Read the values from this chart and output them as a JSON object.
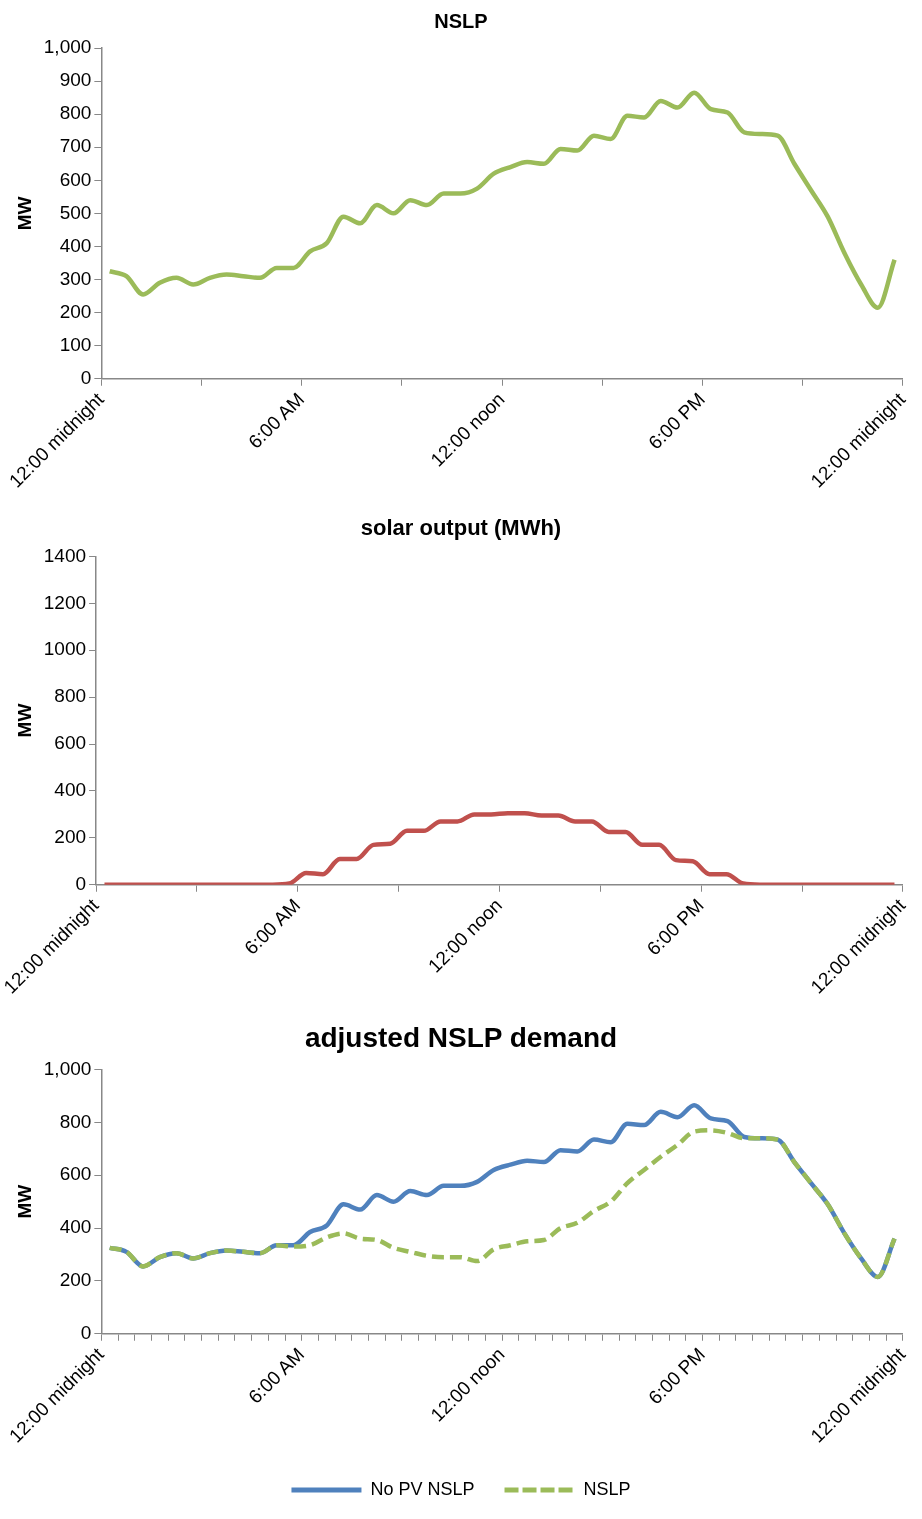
{
  "chart_data": [
    {
      "type": "line",
      "title": "NSLP",
      "ylabel": "MW",
      "x": [
        0.25,
        0.75,
        1.25,
        1.75,
        2.25,
        2.75,
        3.25,
        3.75,
        4.25,
        4.75,
        5.25,
        5.75,
        6.25,
        6.75,
        7.25,
        7.75,
        8.25,
        8.75,
        9.25,
        9.75,
        10.25,
        10.75,
        11.25,
        11.75,
        12.25,
        12.75,
        13.25,
        13.75,
        14.25,
        14.75,
        15.25,
        15.75,
        16.25,
        16.75,
        17.25,
        17.75,
        18.25,
        18.75,
        19.25,
        19.75,
        20.25,
        20.75,
        21.25,
        21.75,
        22.25,
        22.75,
        23.25,
        23.75
      ],
      "series": [
        {
          "color": "#9bbb59",
          "values": [
            325,
            310,
            255,
            290,
            305,
            285,
            305,
            315,
            310,
            305,
            335,
            335,
            385,
            410,
            490,
            470,
            525,
            500,
            540,
            525,
            560,
            560,
            575,
            620,
            640,
            655,
            650,
            695,
            690,
            735,
            725,
            795,
            790,
            840,
            820,
            865,
            815,
            805,
            745,
            740,
            735,
            650,
            570,
            490,
            380,
            285,
            215,
            360
          ]
        }
      ],
      "xlim": [
        0,
        24
      ],
      "xticks": [
        {
          "value": 0,
          "label": "12:00 midnight"
        },
        {
          "value": 3,
          "label": null
        },
        {
          "value": 6,
          "label": "6:00 AM"
        },
        {
          "value": 9,
          "label": null
        },
        {
          "value": 12,
          "label": "12:00 noon"
        },
        {
          "value": 15,
          "label": null
        },
        {
          "value": 18,
          "label": "6:00 PM"
        },
        {
          "value": 21,
          "label": null
        },
        {
          "value": 24,
          "label": "12:00 midnight"
        }
      ],
      "ylim": [
        0,
        1000
      ],
      "yticks": [
        0,
        100,
        200,
        300,
        400,
        500,
        600,
        700,
        800,
        900,
        {
          "value": 1000,
          "label": "1,000"
        }
      ],
      "grid": false,
      "legend": false,
      "marker": "none",
      "line_style": "solid"
    },
    {
      "type": "line",
      "title": "solar output (MWh)",
      "ylabel": "MW",
      "x": [
        0.25,
        0.75,
        1.25,
        1.75,
        2.25,
        2.75,
        3.25,
        3.75,
        4.25,
        4.75,
        5.25,
        5.75,
        6.25,
        6.75,
        7.25,
        7.75,
        8.25,
        8.75,
        9.25,
        9.75,
        10.25,
        10.75,
        11.25,
        11.75,
        12.25,
        12.75,
        13.25,
        13.75,
        14.25,
        14.75,
        15.25,
        15.75,
        16.25,
        16.75,
        17.25,
        17.75,
        18.25,
        18.75,
        19.25,
        19.75,
        20.25,
        20.75,
        21.25,
        21.75,
        22.25,
        22.75,
        23.25,
        23.75
      ],
      "series": [
        {
          "color": "#c0504d",
          "values": [
            0,
            0,
            0,
            0,
            0,
            0,
            0,
            0,
            0,
            0,
            0,
            5,
            50,
            45,
            110,
            110,
            170,
            175,
            230,
            230,
            270,
            270,
            300,
            300,
            305,
            305,
            295,
            295,
            270,
            270,
            225,
            225,
            170,
            170,
            105,
            100,
            45,
            45,
            5,
            0,
            0,
            0,
            0,
            0,
            0,
            0,
            0,
            0
          ]
        }
      ],
      "xlim": [
        0,
        24
      ],
      "xticks": [
        {
          "value": 0,
          "label": "12:00 midnight"
        },
        {
          "value": 3,
          "label": null
        },
        {
          "value": 6,
          "label": "6:00 AM"
        },
        {
          "value": 9,
          "label": null
        },
        {
          "value": 12,
          "label": "12:00 noon"
        },
        {
          "value": 15,
          "label": null
        },
        {
          "value": 18,
          "label": "6:00 PM"
        },
        {
          "value": 21,
          "label": null
        },
        {
          "value": 24,
          "label": "12:00 midnight"
        }
      ],
      "ylim": [
        0,
        1400
      ],
      "yticks": [
        0,
        200,
        400,
        600,
        800,
        1000,
        1200,
        1400
      ],
      "grid": false,
      "legend": false,
      "marker": "none",
      "line_style": "solid"
    },
    {
      "type": "line",
      "title": "adjusted NSLP demand",
      "ylabel": "MW",
      "x": [
        0.25,
        0.75,
        1.25,
        1.75,
        2.25,
        2.75,
        3.25,
        3.75,
        4.25,
        4.75,
        5.25,
        5.75,
        6.25,
        6.75,
        7.25,
        7.75,
        8.25,
        8.75,
        9.25,
        9.75,
        10.25,
        10.75,
        11.25,
        11.75,
        12.25,
        12.75,
        13.25,
        13.75,
        14.25,
        14.75,
        15.25,
        15.75,
        16.25,
        16.75,
        17.25,
        17.75,
        18.25,
        18.75,
        19.25,
        19.75,
        20.25,
        20.75,
        21.25,
        21.75,
        22.25,
        22.75,
        23.25,
        23.75
      ],
      "series": [
        {
          "name": "No PV NSLP",
          "color": "#4f81bd",
          "line_style": "solid",
          "values": [
            325,
            310,
            255,
            290,
            305,
            285,
            305,
            315,
            310,
            305,
            335,
            335,
            385,
            410,
            490,
            470,
            525,
            500,
            540,
            525,
            560,
            560,
            575,
            620,
            640,
            655,
            650,
            695,
            690,
            735,
            725,
            795,
            790,
            840,
            820,
            865,
            815,
            805,
            745,
            740,
            735,
            650,
            570,
            490,
            380,
            285,
            215,
            360
          ]
        },
        {
          "name": "NSLP",
          "color": "#9bbb59",
          "line_style": "dashed",
          "values": [
            325,
            310,
            255,
            290,
            305,
            285,
            305,
            315,
            310,
            305,
            335,
            330,
            335,
            365,
            380,
            360,
            355,
            325,
            310,
            295,
            290,
            290,
            275,
            320,
            335,
            350,
            355,
            400,
            420,
            465,
            500,
            570,
            620,
            670,
            715,
            765,
            770,
            760,
            740,
            740,
            735,
            650,
            570,
            490,
            380,
            285,
            215,
            360
          ]
        }
      ],
      "xlim": [
        0,
        24
      ],
      "xticks": [
        {
          "value": 0,
          "label": "12:00 midnight"
        },
        {
          "value": 0.5,
          "label": null
        },
        {
          "value": 1,
          "label": null
        },
        {
          "value": 1.5,
          "label": null
        },
        {
          "value": 2,
          "label": null
        },
        {
          "value": 2.5,
          "label": null
        },
        {
          "value": 3,
          "label": null
        },
        {
          "value": 3.5,
          "label": null
        },
        {
          "value": 4,
          "label": null
        },
        {
          "value": 4.5,
          "label": null
        },
        {
          "value": 5,
          "label": null
        },
        {
          "value": 5.5,
          "label": null
        },
        {
          "value": 6,
          "label": "6:00 AM"
        },
        {
          "value": 6.5,
          "label": null
        },
        {
          "value": 7,
          "label": null
        },
        {
          "value": 7.5,
          "label": null
        },
        {
          "value": 8,
          "label": null
        },
        {
          "value": 8.5,
          "label": null
        },
        {
          "value": 9,
          "label": null
        },
        {
          "value": 9.5,
          "label": null
        },
        {
          "value": 10,
          "label": null
        },
        {
          "value": 10.5,
          "label": null
        },
        {
          "value": 11,
          "label": null
        },
        {
          "value": 11.5,
          "label": null
        },
        {
          "value": 12,
          "label": "12:00 noon"
        },
        {
          "value": 12.5,
          "label": null
        },
        {
          "value": 13,
          "label": null
        },
        {
          "value": 13.5,
          "label": null
        },
        {
          "value": 14,
          "label": null
        },
        {
          "value": 14.5,
          "label": null
        },
        {
          "value": 15,
          "label": null
        },
        {
          "value": 15.5,
          "label": null
        },
        {
          "value": 16,
          "label": null
        },
        {
          "value": 16.5,
          "label": null
        },
        {
          "value": 17,
          "label": null
        },
        {
          "value": 17.5,
          "label": null
        },
        {
          "value": 18,
          "label": "6:00 PM"
        },
        {
          "value": 18.5,
          "label": null
        },
        {
          "value": 19,
          "label": null
        },
        {
          "value": 19.5,
          "label": null
        },
        {
          "value": 20,
          "label": null
        },
        {
          "value": 20.5,
          "label": null
        },
        {
          "value": 21,
          "label": null
        },
        {
          "value": 21.5,
          "label": null
        },
        {
          "value": 22,
          "label": null
        },
        {
          "value": 22.5,
          "label": null
        },
        {
          "value": 23,
          "label": null
        },
        {
          "value": 23.5,
          "label": null
        },
        {
          "value": 24,
          "label": "12:00 midnight"
        }
      ],
      "ylim": [
        0,
        1000
      ],
      "yticks": [
        0,
        200,
        400,
        600,
        800,
        {
          "value": 1000,
          "label": "1,000"
        }
      ],
      "grid": false,
      "legend": "bottom",
      "marker": "none"
    }
  ]
}
